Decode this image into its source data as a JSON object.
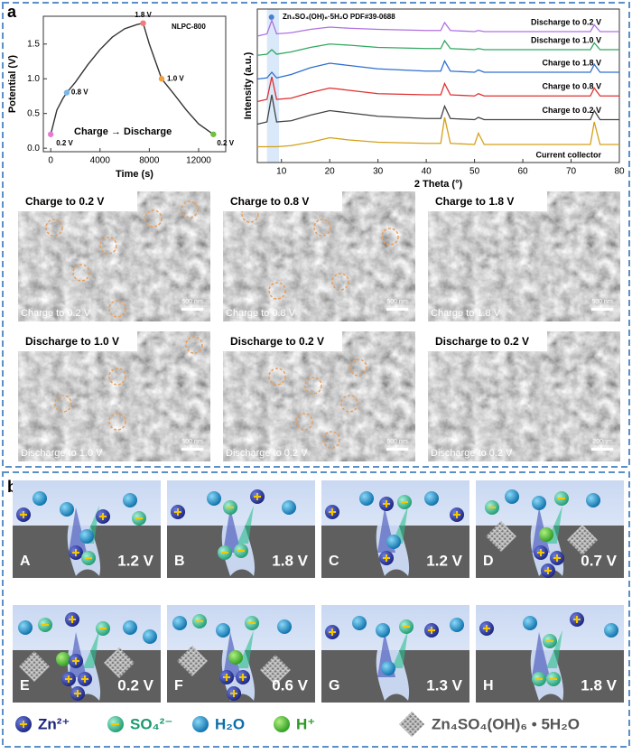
{
  "panel_labels": [
    "a",
    "b"
  ],
  "chart_data": [
    {
      "type": "line",
      "annotation": "NLPC-800",
      "caption": "Charge → Discharge",
      "x_label": "Time (s)",
      "y_label": "Potential (V)",
      "x": [
        0,
        500,
        1000,
        1300,
        2000,
        3000,
        4000,
        5000,
        6000,
        7000,
        7500,
        8000,
        9000,
        10000,
        11000,
        12000,
        13200
      ],
      "values": [
        0.2,
        0.55,
        0.72,
        0.8,
        0.95,
        1.2,
        1.42,
        1.6,
        1.72,
        1.78,
        1.8,
        1.5,
        1.0,
        0.78,
        0.55,
        0.35,
        0.2
      ],
      "color": "#333333",
      "markers": {
        "x": [
          0,
          1300,
          7500,
          9000,
          13200
        ],
        "values": [
          0.2,
          0.8,
          1.8,
          1.0,
          0.2
        ],
        "value_labels": [
          "0.2 V",
          "0.8 V",
          "1.8 V",
          "1.0 V",
          "0.2 V"
        ],
        "colors": [
          "#e67ad0",
          "#7ab8e8",
          "#f07c7c",
          "#f0a040",
          "#70c040"
        ]
      },
      "xlim": [
        -600,
        14200
      ],
      "xticks": [
        0,
        4000,
        8000,
        12000
      ],
      "ylim": [
        -0.05,
        1.9
      ],
      "yticks": [
        {
          "value": 0,
          "label": "0.0"
        },
        0.5,
        {
          "value": 1,
          "label": "1.0"
        },
        1.5
      ]
    },
    {
      "type": "line",
      "x_label": "2 Theta (°)",
      "y_label": "Intensity (a.u.)",
      "annotation": "Zn₄SO₄(OH)₆·5H₂O PDF#39-0688",
      "highlight_range": [
        7,
        9.5
      ],
      "x": [
        5,
        7,
        8,
        9,
        12,
        16,
        20,
        24,
        30,
        40,
        43,
        43.8,
        45,
        50,
        50.8,
        52,
        60,
        70,
        74,
        74.8,
        76,
        80
      ],
      "series": [
        {
          "name": "Current collector",
          "color": "#d4a017",
          "values": [
            0.3,
            0.3,
            0.3,
            0.3,
            0.35,
            0.5,
            0.7,
            0.6,
            0.5,
            0.45,
            0.45,
            1.6,
            0.45,
            0.4,
            0.9,
            0.4,
            0.4,
            0.4,
            0.4,
            1.4,
            0.4,
            0.4
          ]
        },
        {
          "name": "Charge to 0.2 V",
          "color": "#444444",
          "values": [
            1.3,
            1.4,
            2.6,
            1.4,
            1.45,
            1.7,
            1.9,
            1.8,
            1.65,
            1.55,
            1.55,
            2.1,
            1.55,
            1.5,
            1.6,
            1.5,
            1.5,
            1.5,
            1.5,
            1.9,
            1.5,
            1.5
          ]
        },
        {
          "name": "Charge to 0.8 V",
          "color": "#e03030",
          "values": [
            2.3,
            2.4,
            3.4,
            2.4,
            2.45,
            2.7,
            2.9,
            2.8,
            2.65,
            2.6,
            2.6,
            3.1,
            2.6,
            2.55,
            2.65,
            2.55,
            2.55,
            2.55,
            2.55,
            2.9,
            2.55,
            2.55
          ]
        },
        {
          "name": "Charge to 1.8 V",
          "color": "#2f6fd0",
          "values": [
            3.3,
            3.35,
            3.6,
            3.35,
            3.5,
            3.8,
            4.0,
            3.9,
            3.75,
            3.65,
            3.65,
            4.1,
            3.65,
            3.6,
            3.7,
            3.6,
            3.6,
            3.6,
            3.6,
            3.95,
            3.6,
            3.6
          ]
        },
        {
          "name": "Discharge to 1.0 V",
          "color": "#30a860",
          "values": [
            4.35,
            4.4,
            4.6,
            4.4,
            4.5,
            4.7,
            4.85,
            4.8,
            4.7,
            4.65,
            4.65,
            5.0,
            4.65,
            4.6,
            4.65,
            4.6,
            4.6,
            4.6,
            4.6,
            4.9,
            4.6,
            4.6
          ]
        },
        {
          "name": "Discharge to 0.2 V",
          "color": "#b070e0",
          "values": [
            5.2,
            5.3,
            5.9,
            5.3,
            5.35,
            5.5,
            5.6,
            5.55,
            5.5,
            5.45,
            5.45,
            5.8,
            5.45,
            5.4,
            5.45,
            5.4,
            5.4,
            5.4,
            5.4,
            5.7,
            5.4,
            5.4
          ]
        }
      ],
      "xlim": [
        5,
        80
      ],
      "xticks": [
        10,
        20,
        30,
        40,
        50,
        60,
        70,
        80
      ],
      "ylim": [
        -0.4,
        6.4
      ]
    }
  ],
  "sem_images": [
    {
      "title": "Charge to 0.2 V",
      "caption": "Charge to 0.2 V",
      "scale": "500 nm"
    },
    {
      "title": "Charge to 0.8 V",
      "caption": "Charge to 0.8 V",
      "scale": "500 nm"
    },
    {
      "title": "Charge to 1.8 V",
      "caption": "Charge to 1.8 V",
      "scale": "500 nm"
    },
    {
      "title": "Discharge to 1.0 V",
      "caption": "Discharge to 1.0 V",
      "scale": "500 nm"
    },
    {
      "title": "Discharge to 0.2 V",
      "caption": "Discharge to 0.2 V",
      "scale": "500 nm"
    },
    {
      "title": "Discharge to 0.2 V",
      "caption": "Discharge to 0.2 V",
      "scale": "200nm"
    }
  ],
  "schematic": {
    "panels": [
      {
        "letter": "A",
        "voltage": "1.2 V"
      },
      {
        "letter": "B",
        "voltage": "1.8 V"
      },
      {
        "letter": "C",
        "voltage": "1.2 V"
      },
      {
        "letter": "D",
        "voltage": "0.7 V"
      },
      {
        "letter": "E",
        "voltage": "0.2 V"
      },
      {
        "letter": "F",
        "voltage": "0.6 V"
      },
      {
        "letter": "G",
        "voltage": "1.3 V"
      },
      {
        "letter": "H",
        "voltage": "1.8 V"
      }
    ],
    "legend": [
      "Zn²⁺",
      "SO₄²⁻",
      "H₂O",
      "H⁺",
      "Zn₄SO₄(OH)₆ • 5H₂O"
    ]
  }
}
